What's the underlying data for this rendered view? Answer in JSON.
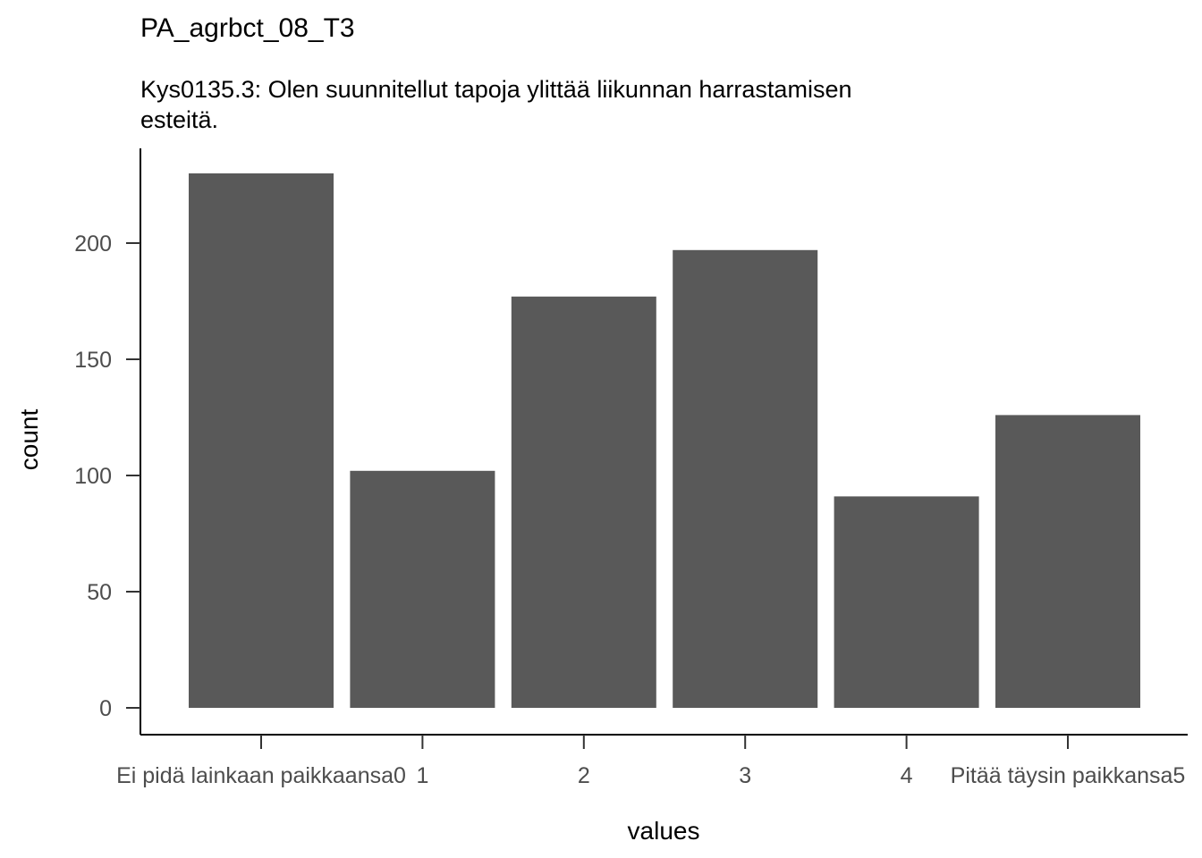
{
  "chart_data": {
    "type": "bar",
    "title": "PA_agrbct_08_T3",
    "subtitle_lines": [
      "Kys0135.3: Olen suunnitellut tapoja ylittää liikunnan harrastamisen",
      "esteitä."
    ],
    "xlabel": "values",
    "ylabel": "count",
    "categories": [
      "Ei pidä lainkaan paikkaansa0",
      "1",
      "2",
      "3",
      "4",
      "Pitää täysin paikkansa5"
    ],
    "values": [
      230,
      102,
      177,
      197,
      91,
      126
    ],
    "ylim": [
      0,
      240
    ],
    "yticks": [
      0,
      50,
      100,
      150,
      200
    ],
    "bar_color": "#595959",
    "grid": false,
    "legend": "none"
  }
}
